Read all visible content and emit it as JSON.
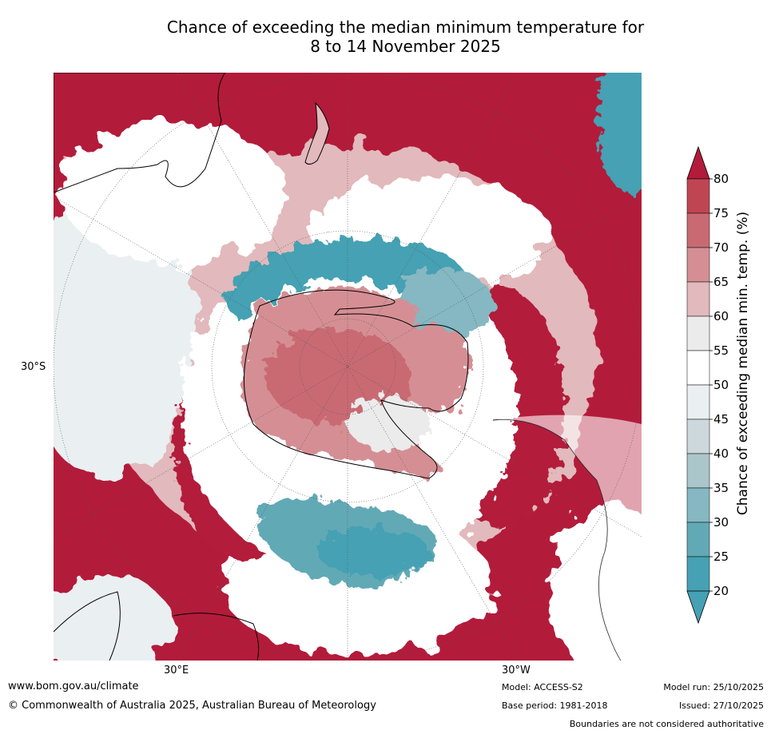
{
  "title_line1": "Chance of exceeding the median minimum temperature for",
  "title_line2": "8 to 14 November 2025",
  "axes": {
    "lat_label": "30°S",
    "lon_label_east": "30°E",
    "lon_label_west": "30°W"
  },
  "colorbar": {
    "title": "Chance of exceeding median min. temp. (%)",
    "ticks": [
      "80",
      "75",
      "70",
      "65",
      "60",
      "55",
      "50",
      "45",
      "40",
      "35",
      "30",
      "25",
      "20"
    ],
    "colors": [
      "#b31b3a",
      "#c04552",
      "#c96a73",
      "#d58f94",
      "#e2b9bc",
      "#ebebeb",
      "#ffffff",
      "#eaeff1",
      "#ccd8db",
      "#aac6cb",
      "#85b8c2",
      "#62a9b6",
      "#45a1b3"
    ],
    "top_color": "#b31b3a",
    "bottom_color": "#45a1b3"
  },
  "footer": {
    "website": "www.bom.gov.au/climate",
    "copyright": "© Commonwealth of Australia 2025, Australian Bureau of Meteorology",
    "model": "Model: ACCESS-S2",
    "base_period": "Base period: 1981-2018",
    "model_run": "Model run: 25/10/2025",
    "issued": "Issued: 27/10/2025",
    "disclaimer": "Boundaries are not considered authoritative"
  }
}
